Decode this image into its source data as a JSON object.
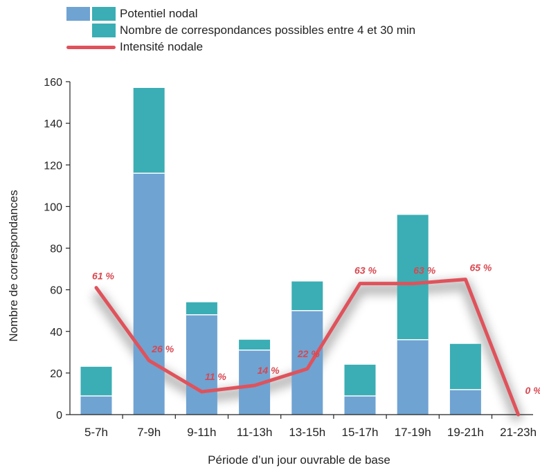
{
  "legend": {
    "potentiel": "Potentiel nodal",
    "correspondances": "Nombre de correspondances possibles entre 4 et 30 min",
    "intensite": "Intensité nodale"
  },
  "colors": {
    "blue": "#6fa3d2",
    "teal": "#3aaeb4",
    "line": "#e0525b",
    "label": "#d9474f"
  },
  "chart_data": {
    "type": "bar",
    "stacked": true,
    "categories": [
      "5-7h",
      "7-9h",
      "9-11h",
      "11-13h",
      "13-15h",
      "15-17h",
      "17-19h",
      "19-21h",
      "21-23h"
    ],
    "series": [
      {
        "name": "Potentiel nodal",
        "values": [
          9,
          116,
          48,
          31,
          50,
          9,
          36,
          12,
          0
        ]
      },
      {
        "name": "Nombre de correspondances possibles entre 4 et 30 min",
        "values": [
          14,
          41,
          6,
          5,
          14,
          15,
          60,
          22,
          0
        ]
      }
    ],
    "line": {
      "name": "Intensité nodale",
      "values": [
        61,
        26,
        11,
        14,
        22,
        63,
        63,
        65,
        0
      ],
      "labels": [
        "61 %",
        "26 %",
        "11 %",
        "14 %",
        "22 %",
        "63 %",
        "63 %",
        "65 %",
        "0 %"
      ]
    },
    "xlabel": "Période d’un jour ouvrable de base",
    "ylabel": "Nombre de correspondances",
    "ylim": [
      0,
      160
    ],
    "yticks": [
      0,
      20,
      40,
      60,
      80,
      100,
      120,
      140,
      160
    ],
    "grid": false
  }
}
